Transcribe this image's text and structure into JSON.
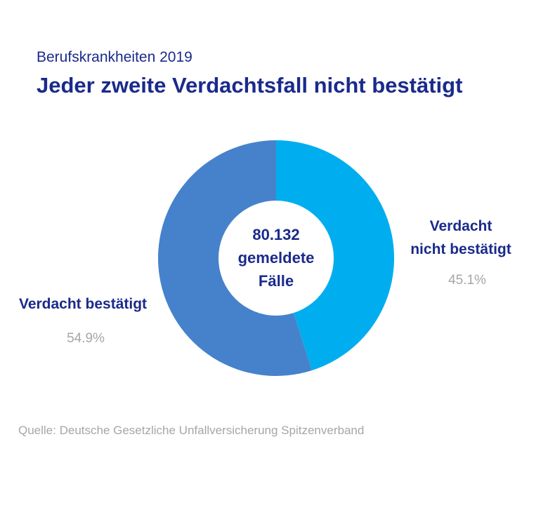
{
  "header": {
    "subtitle": "Berufskrankheiten 2019",
    "title": "Jeder zweite Verdachtsfall nicht bestätigt"
  },
  "center": {
    "lines": [
      "80.132",
      "gemeldete",
      "Fälle"
    ]
  },
  "chart_data": {
    "type": "pie",
    "variant": "donut",
    "title": "Jeder zweite Verdachtsfall nicht bestätigt",
    "subtitle": "Berufskrankheiten 2019",
    "total_cases": 80132,
    "slices": [
      {
        "label_lines": [
          "Verdacht",
          "nicht bestätigt"
        ],
        "value": 45.1,
        "value_label": "45.1%",
        "color": "#00aeef"
      },
      {
        "label_lines": [
          "Verdacht bestätigt"
        ],
        "value": 54.9,
        "value_label": "54.9%",
        "color": "#4682cb"
      }
    ]
  },
  "footer": {
    "source": "Quelle: Deutsche Gesetzliche Unfallversicherung Spitzenverband"
  }
}
